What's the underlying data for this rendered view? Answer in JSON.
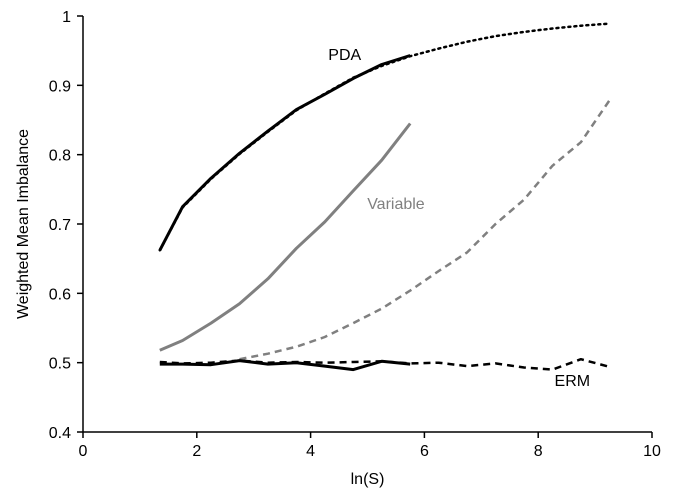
{
  "chart_data": {
    "type": "line",
    "xlabel": "ln(S)",
    "ylabel": "Weighted Mean Imbalance",
    "xlim": [
      0,
      10
    ],
    "ylim": [
      0.4,
      1.0
    ],
    "x_ticks": [
      "0",
      "2",
      "4",
      "6",
      "8",
      "10"
    ],
    "y_ticks": [
      "0.4",
      "0.5",
      "0.6",
      "0.7",
      "0.8",
      "0.9",
      "1"
    ],
    "grid": false,
    "legend": "none",
    "annotations": [
      {
        "text": "PDA",
        "x": 4.6,
        "y": 0.945,
        "color": "#000000"
      },
      {
        "text": "Variable",
        "x": 5.5,
        "y": 0.73,
        "color": "#808080"
      },
      {
        "text": "ERM",
        "x": 8.6,
        "y": 0.475,
        "color": "#000000"
      }
    ],
    "series": [
      {
        "style": "solid",
        "color": "#000000",
        "points": [
          [
            1.35,
            0.662
          ],
          [
            1.75,
            0.725
          ],
          [
            2.25,
            0.766
          ],
          [
            2.75,
            0.802
          ],
          [
            3.25,
            0.834
          ],
          [
            3.75,
            0.865
          ],
          [
            4.25,
            0.887
          ],
          [
            4.75,
            0.91
          ],
          [
            5.25,
            0.93
          ],
          [
            5.75,
            0.943
          ]
        ]
      },
      {
        "style": "dotted",
        "color": "#000000",
        "points": [
          [
            1.35,
            0.662
          ],
          [
            1.75,
            0.724
          ],
          [
            2.25,
            0.765
          ],
          [
            2.75,
            0.801
          ],
          [
            3.25,
            0.833
          ],
          [
            3.75,
            0.864
          ],
          [
            4.25,
            0.888
          ],
          [
            4.75,
            0.911
          ],
          [
            5.25,
            0.928
          ],
          [
            5.75,
            0.942
          ],
          [
            6.25,
            0.953
          ],
          [
            6.75,
            0.963
          ],
          [
            7.25,
            0.971
          ],
          [
            7.75,
            0.977
          ],
          [
            8.25,
            0.982
          ],
          [
            8.75,
            0.986
          ],
          [
            9.25,
            0.989
          ]
        ]
      },
      {
        "style": "solid",
        "color": "#808080",
        "points": [
          [
            1.35,
            0.518
          ],
          [
            1.75,
            0.532
          ],
          [
            2.25,
            0.557
          ],
          [
            2.75,
            0.585
          ],
          [
            3.25,
            0.621
          ],
          [
            3.75,
            0.665
          ],
          [
            4.25,
            0.703
          ],
          [
            4.75,
            0.748
          ],
          [
            5.25,
            0.792
          ],
          [
            5.75,
            0.845
          ]
        ]
      },
      {
        "style": "dashed",
        "color": "#808080",
        "points": [
          [
            2.75,
            0.505
          ],
          [
            3.25,
            0.513
          ],
          [
            3.75,
            0.523
          ],
          [
            4.25,
            0.537
          ],
          [
            4.75,
            0.557
          ],
          [
            5.25,
            0.578
          ],
          [
            5.75,
            0.604
          ],
          [
            6.25,
            0.632
          ],
          [
            6.75,
            0.659
          ],
          [
            7.25,
            0.7
          ],
          [
            7.75,
            0.735
          ],
          [
            8.25,
            0.784
          ],
          [
            8.75,
            0.818
          ],
          [
            9.25,
            0.878
          ]
        ]
      },
      {
        "style": "dashed",
        "color": "#000000",
        "points": [
          [
            1.35,
            0.501
          ],
          [
            1.75,
            0.499
          ],
          [
            2.25,
            0.5
          ],
          [
            2.75,
            0.503
          ],
          [
            3.25,
            0.5
          ],
          [
            3.75,
            0.501
          ],
          [
            4.25,
            0.5
          ],
          [
            4.75,
            0.501
          ],
          [
            5.25,
            0.502
          ],
          [
            5.75,
            0.499
          ],
          [
            6.25,
            0.5
          ],
          [
            6.75,
            0.495
          ],
          [
            7.25,
            0.499
          ],
          [
            7.75,
            0.493
          ],
          [
            8.25,
            0.49
          ],
          [
            8.75,
            0.505
          ],
          [
            9.25,
            0.494
          ]
        ]
      },
      {
        "style": "solid",
        "color": "#000000",
        "points": [
          [
            1.35,
            0.498
          ],
          [
            1.75,
            0.498
          ],
          [
            2.25,
            0.497
          ],
          [
            2.75,
            0.503
          ],
          [
            3.25,
            0.498
          ],
          [
            3.75,
            0.5
          ],
          [
            4.25,
            0.495
          ],
          [
            4.75,
            0.49
          ],
          [
            5.25,
            0.502
          ],
          [
            5.75,
            0.498
          ]
        ]
      }
    ]
  }
}
